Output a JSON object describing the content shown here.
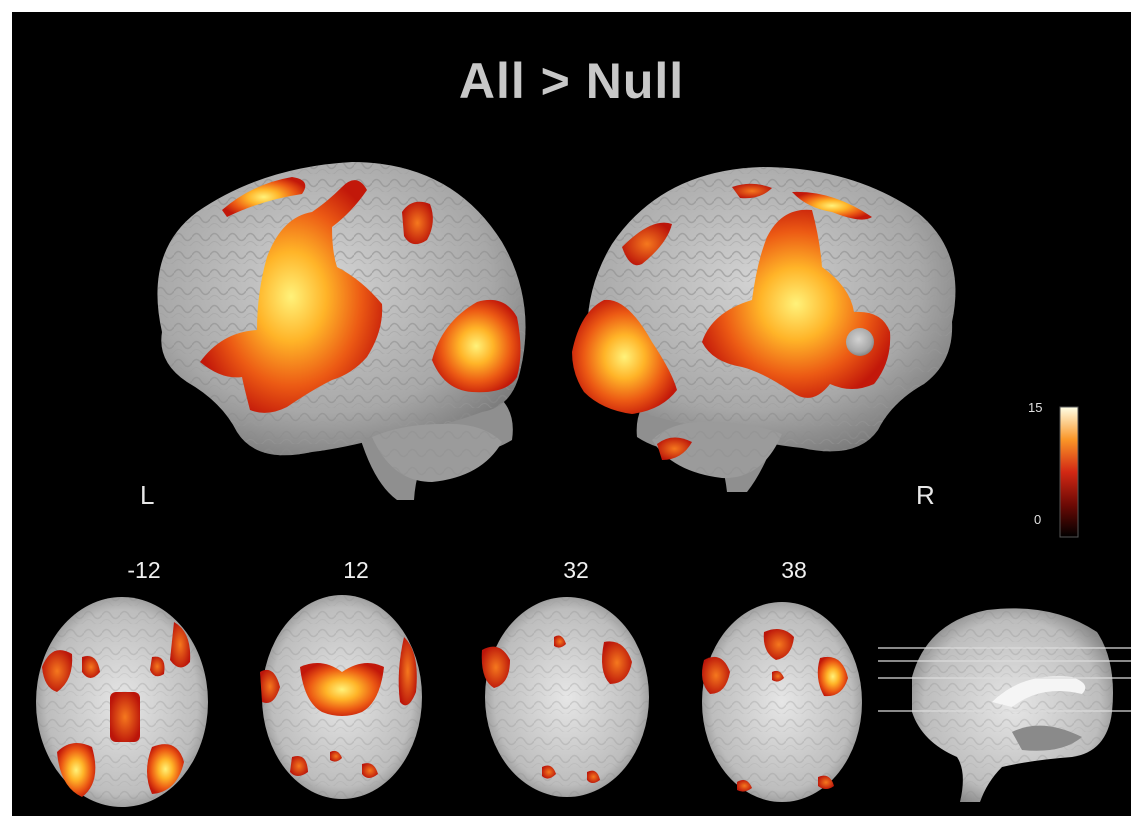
{
  "title": "All > Null",
  "hemispheres": {
    "left": "L",
    "right": "R"
  },
  "colorbar": {
    "max": "15",
    "min": "0"
  },
  "slices": [
    {
      "label": "-12"
    },
    {
      "label": "12"
    },
    {
      "label": "32"
    },
    {
      "label": "38"
    }
  ],
  "colors": {
    "background": "#000000",
    "brain": "#b4b4b4",
    "activation_low": "#c81e0a",
    "activation_mid": "#f0641e",
    "activation_high": "#ffe650"
  }
}
